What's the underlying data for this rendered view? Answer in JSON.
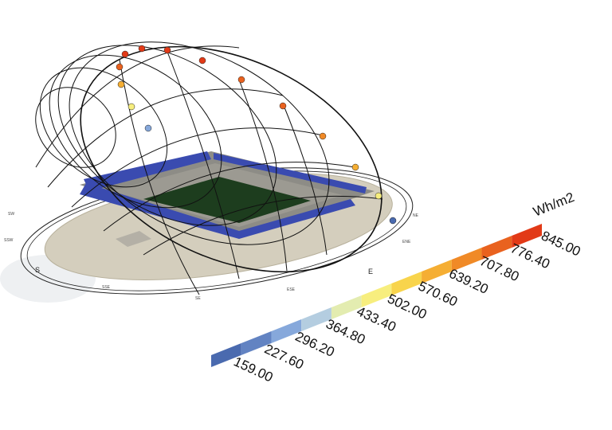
{
  "legend": {
    "unit": "Wh/m2",
    "labels": [
      "159.00",
      "227.60",
      "296.20",
      "364.80",
      "433.40",
      "502.00",
      "570.60",
      "639.20",
      "707.80",
      "776.40",
      "845.00"
    ],
    "colors": [
      "#4a6aaf",
      "#6283c2",
      "#86a8db",
      "#b4cde0",
      "#e3ecb0",
      "#f7ee7e",
      "#f8d44c",
      "#f5ae33",
      "#f08a27",
      "#e9621f",
      "#e23a17"
    ]
  },
  "compass": {
    "major": [
      "S",
      "E"
    ],
    "minor": [
      "SW",
      "SSW",
      "SSE",
      "SE",
      "ESE",
      "ENE",
      "NE"
    ]
  }
}
